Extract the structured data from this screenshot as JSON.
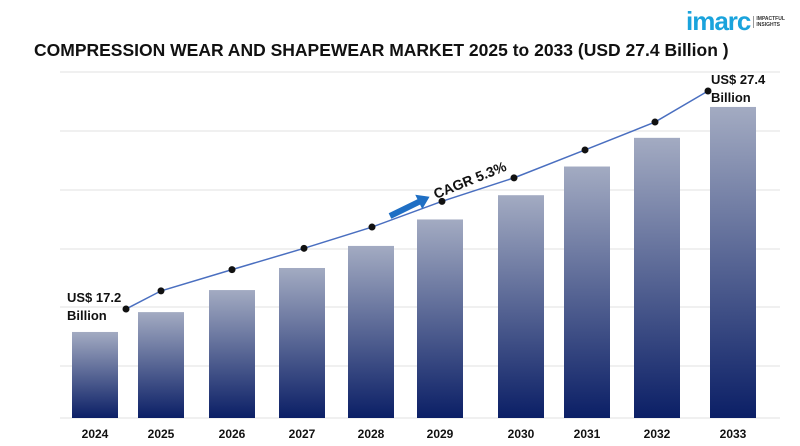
{
  "title": "COMPRESSION WEAR AND SHAPEWEAR MARKET 2025 to 2033 (USD 27.4 Billion )",
  "logo": {
    "word": "imarc",
    "tagline_1": "IMPACTFUL",
    "tagline_2": "INSIGHTS"
  },
  "chart_data": {
    "type": "bar",
    "title": "COMPRESSION WEAR AND SHAPEWEAR MARKET 2025 to 2033 (USD 27.4 Billion )",
    "categories": [
      "2024",
      "2025",
      "2026",
      "2027",
      "2028",
      "2029",
      "2030",
      "2031",
      "2032",
      "2033"
    ],
    "values": [
      17.2,
      18.1,
      19.1,
      20.1,
      21.1,
      22.3,
      23.4,
      24.7,
      26.0,
      27.4
    ],
    "units": "USD Billion",
    "overlay_line": true,
    "annotations": {
      "start_label": [
        "US$ 17.2",
        "Billion"
      ],
      "end_label": [
        "US$ 27.4",
        "Billion"
      ],
      "cagr": "CAGR 5.3%"
    },
    "grid": true,
    "colors": {
      "bar_top": "#a3abc2",
      "bar_bottom": "#0b1f66",
      "line": "#4a6fc0",
      "arrow": "#1f6fc4",
      "marker": "#111111"
    }
  }
}
